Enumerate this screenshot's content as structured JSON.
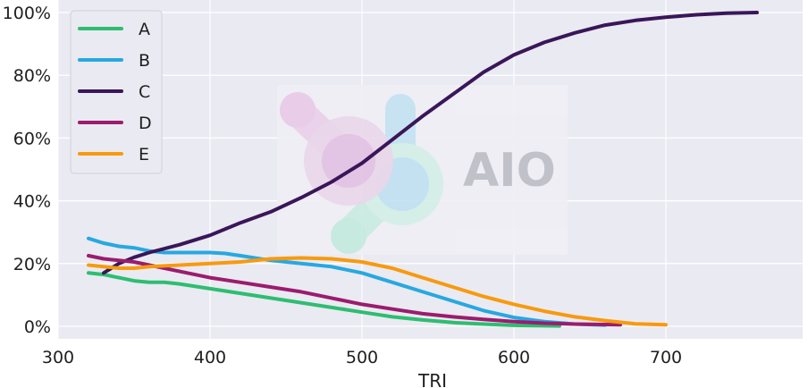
{
  "chart_data": {
    "type": "line",
    "title": "",
    "xlabel": "TRI",
    "ylabel": "",
    "xlim": [
      300,
      790
    ],
    "ylim": [
      -4,
      104
    ],
    "xticks": [
      300,
      400,
      500,
      600,
      700
    ],
    "yticks": [
      0,
      20,
      40,
      60,
      80,
      100
    ],
    "ytick_suffix": "%",
    "grid": true,
    "legend_position": "top-left",
    "series": [
      {
        "name": "A",
        "color": "#2ebd71",
        "x": [
          320,
          330,
          340,
          350,
          360,
          370,
          380,
          400,
          420,
          440,
          460,
          480,
          500,
          520,
          540,
          560,
          580,
          600,
          630
        ],
        "y": [
          17,
          16.5,
          15.5,
          14.5,
          14,
          14,
          13.5,
          12,
          10.5,
          9,
          7.5,
          6,
          4.5,
          3,
          2,
          1.2,
          0.7,
          0.3,
          0.1
        ]
      },
      {
        "name": "B",
        "color": "#27a8e0",
        "x": [
          320,
          330,
          340,
          350,
          360,
          370,
          380,
          400,
          410,
          420,
          440,
          460,
          480,
          500,
          520,
          540,
          560,
          580,
          600,
          620,
          640,
          660
        ],
        "y": [
          28,
          26.5,
          25.5,
          25,
          24,
          23.5,
          23.5,
          23.5,
          23.2,
          22.5,
          21,
          20,
          19,
          17,
          14,
          11,
          8,
          5,
          2.8,
          1.5,
          0.7,
          0.4
        ]
      },
      {
        "name": "C",
        "color": "#3a1659",
        "x": [
          330,
          340,
          350,
          360,
          380,
          400,
          420,
          440,
          460,
          480,
          500,
          520,
          540,
          560,
          580,
          600,
          620,
          640,
          660,
          680,
          700,
          720,
          740,
          760
        ],
        "y": [
          17,
          20,
          22,
          23.5,
          26,
          29,
          33,
          36.5,
          41,
          46,
          52,
          59.5,
          67,
          74,
          81,
          86.5,
          90.5,
          93.5,
          96,
          97.5,
          98.5,
          99.3,
          99.8,
          100
        ]
      },
      {
        "name": "D",
        "color": "#9b1c6e",
        "x": [
          320,
          330,
          340,
          350,
          360,
          370,
          380,
          400,
          420,
          440,
          460,
          480,
          500,
          520,
          540,
          560,
          580,
          600,
          620,
          640,
          670
        ],
        "y": [
          22.5,
          21.5,
          21,
          20.5,
          19.5,
          18.5,
          17.5,
          15.5,
          14,
          12.5,
          11,
          9,
          7,
          5.5,
          4,
          3,
          2.2,
          1.5,
          1,
          0.7,
          0.5
        ]
      },
      {
        "name": "E",
        "color": "#f79a0f",
        "x": [
          320,
          330,
          340,
          350,
          360,
          380,
          400,
          420,
          440,
          460,
          480,
          500,
          520,
          540,
          560,
          580,
          600,
          620,
          640,
          660,
          680,
          700
        ],
        "y": [
          19.5,
          19,
          18.5,
          18.5,
          19,
          19.5,
          20,
          20.5,
          21.5,
          21.8,
          21.5,
          20.5,
          18.5,
          15.5,
          12.5,
          9.5,
          7,
          4.8,
          3,
          1.8,
          0.8,
          0.5
        ]
      }
    ]
  },
  "watermark": {
    "text": "AIO",
    "colors": {
      "green": "#bfe9de",
      "blue": "#bde2f2",
      "purple": "#e4c3e6"
    }
  }
}
